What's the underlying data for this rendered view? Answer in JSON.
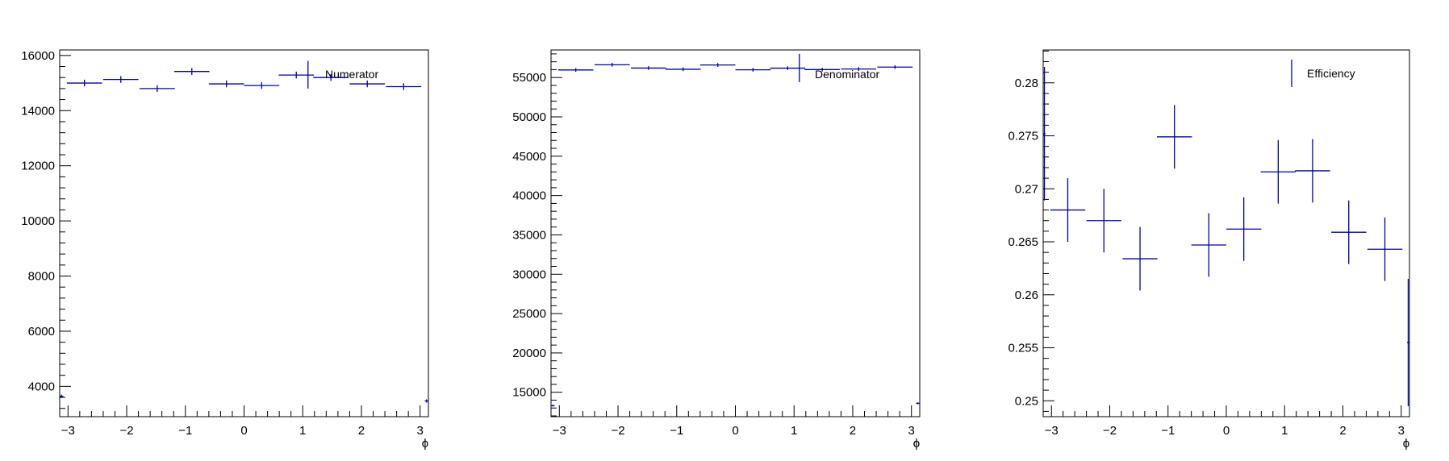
{
  "chart_data": [
    {
      "type": "histogram-errorbars",
      "title": "",
      "xlabel": "ϕ",
      "ylabel": "",
      "xlim": [
        -3.1416,
        3.1416
      ],
      "ylim": [
        2900,
        16200
      ],
      "xticks": [
        -3,
        -2,
        -1,
        0,
        1,
        2,
        3
      ],
      "yticks": [
        4000,
        6000,
        8000,
        10000,
        12000,
        14000,
        16000
      ],
      "ytick_labels": [
        "4000",
        "6000",
        "8000",
        "10000",
        "12000",
        "14000",
        "16000"
      ],
      "xtick_labels": [
        "−3",
        "−2",
        "−1",
        "0",
        "1",
        "2",
        "3"
      ],
      "legend": {
        "label": "Numerator",
        "position": "top-right"
      },
      "line_color": "#0000aa",
      "points": [
        {
          "x": -3.11,
          "xerr": 0.03,
          "y": 3640,
          "yerr": 60
        },
        {
          "x": -2.72,
          "xerr": 0.3,
          "y": 15000,
          "yerr": 122
        },
        {
          "x": -2.1,
          "xerr": 0.3,
          "y": 15130,
          "yerr": 123
        },
        {
          "x": -1.48,
          "xerr": 0.3,
          "y": 14800,
          "yerr": 122
        },
        {
          "x": -0.89,
          "xerr": 0.3,
          "y": 15420,
          "yerr": 124
        },
        {
          "x": -0.3,
          "xerr": 0.3,
          "y": 14970,
          "yerr": 122
        },
        {
          "x": 0.3,
          "xerr": 0.3,
          "y": 14910,
          "yerr": 122
        },
        {
          "x": 0.89,
          "xerr": 0.3,
          "y": 15290,
          "yerr": 124
        },
        {
          "x": 1.09,
          "xerr": 0.0,
          "y": 15300,
          "yerr": 500
        },
        {
          "x": 1.48,
          "xerr": 0.3,
          "y": 15200,
          "yerr": 123
        },
        {
          "x": 2.1,
          "xerr": 0.3,
          "y": 14970,
          "yerr": 122
        },
        {
          "x": 2.72,
          "xerr": 0.3,
          "y": 14870,
          "yerr": 122
        },
        {
          "x": 3.11,
          "xerr": 0.03,
          "y": 3470,
          "yerr": 59
        }
      ]
    },
    {
      "type": "histogram-errorbars",
      "title": "",
      "xlabel": "ϕ",
      "ylabel": "",
      "xlim": [
        -3.1416,
        3.1416
      ],
      "ylim": [
        11900,
        58500
      ],
      "xticks": [
        -3,
        -2,
        -1,
        0,
        1,
        2,
        3
      ],
      "yticks": [
        15000,
        20000,
        25000,
        30000,
        35000,
        40000,
        45000,
        50000,
        55000
      ],
      "ytick_labels": [
        "15000",
        "20000",
        "25000",
        "30000",
        "35000",
        "40000",
        "45000",
        "50000",
        "55000"
      ],
      "xtick_labels": [
        "−3",
        "−2",
        "−1",
        "0",
        "1",
        "2",
        "3"
      ],
      "legend": {
        "label": "Denominator",
        "position": "top-right"
      },
      "line_color": "#0000aa",
      "points": [
        {
          "x": -3.11,
          "xerr": 0.03,
          "y": 13300,
          "yerr": 115
        },
        {
          "x": -2.72,
          "xerr": 0.3,
          "y": 55960,
          "yerr": 237
        },
        {
          "x": -2.1,
          "xerr": 0.3,
          "y": 56620,
          "yerr": 238
        },
        {
          "x": -1.48,
          "xerr": 0.3,
          "y": 56200,
          "yerr": 237
        },
        {
          "x": -0.89,
          "xerr": 0.3,
          "y": 56050,
          "yerr": 237
        },
        {
          "x": -0.3,
          "xerr": 0.3,
          "y": 56590,
          "yerr": 238
        },
        {
          "x": 0.3,
          "xerr": 0.3,
          "y": 55980,
          "yerr": 237
        },
        {
          "x": 0.89,
          "xerr": 0.3,
          "y": 56190,
          "yerr": 237
        },
        {
          "x": 1.09,
          "xerr": 0.0,
          "y": 56200,
          "yerr": 1800
        },
        {
          "x": 1.48,
          "xerr": 0.3,
          "y": 56010,
          "yerr": 237
        },
        {
          "x": 2.1,
          "xerr": 0.3,
          "y": 56080,
          "yerr": 237
        },
        {
          "x": 2.72,
          "xerr": 0.3,
          "y": 56320,
          "yerr": 237
        },
        {
          "x": 3.11,
          "xerr": 0.03,
          "y": 13600,
          "yerr": 117
        }
      ]
    },
    {
      "type": "histogram-errorbars",
      "title": "",
      "xlabel": "ϕ",
      "ylabel": "",
      "xlim": [
        -3.1416,
        3.1416
      ],
      "ylim": [
        0.2485,
        0.2831
      ],
      "xticks": [
        -3,
        -2,
        -1,
        0,
        1,
        2,
        3
      ],
      "yticks": [
        0.25,
        0.255,
        0.26,
        0.265,
        0.27,
        0.275,
        0.28
      ],
      "ytick_labels": [
        "0.25",
        "0.255",
        "0.26",
        "0.265",
        "0.27",
        "0.275",
        "0.28"
      ],
      "xtick_labels": [
        "−3",
        "−2",
        "−1",
        "0",
        "1",
        "2",
        "3"
      ],
      "legend": {
        "label": "Efficiency",
        "position": "top-right"
      },
      "line_color": "#0000aa",
      "points": [
        {
          "x": -3.12,
          "xerr": 0.02,
          "y": 0.2752,
          "yerr": 0.0063
        },
        {
          "x": -2.72,
          "xerr": 0.3,
          "y": 0.268,
          "yerr": 0.003
        },
        {
          "x": -2.1,
          "xerr": 0.3,
          "y": 0.267,
          "yerr": 0.003
        },
        {
          "x": -1.48,
          "xerr": 0.3,
          "y": 0.2634,
          "yerr": 0.003
        },
        {
          "x": -0.89,
          "xerr": 0.3,
          "y": 0.2749,
          "yerr": 0.003
        },
        {
          "x": -0.3,
          "xerr": 0.3,
          "y": 0.2647,
          "yerr": 0.003
        },
        {
          "x": 0.3,
          "xerr": 0.3,
          "y": 0.2662,
          "yerr": 0.003
        },
        {
          "x": 0.89,
          "xerr": 0.3,
          "y": 0.2716,
          "yerr": 0.003
        },
        {
          "x": 1.48,
          "xerr": 0.3,
          "y": 0.2717,
          "yerr": 0.003
        },
        {
          "x": 2.1,
          "xerr": 0.3,
          "y": 0.2659,
          "yerr": 0.003
        },
        {
          "x": 2.72,
          "xerr": 0.3,
          "y": 0.2643,
          "yerr": 0.003
        },
        {
          "x": 3.12,
          "xerr": 0.02,
          "y": 0.2555,
          "yerr": 0.006
        }
      ]
    }
  ]
}
